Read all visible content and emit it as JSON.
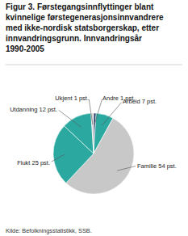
{
  "chart_data": {
    "type": "pie",
    "title": [
      "Figur 3. Førstegangsinnflyttinger blant",
      "kvinnelige førstegenerasjonsinnvandrere",
      "med ikke-nordisk statsborgerskap, etter",
      "innvandringsgrunn. Innvandringsår",
      "1990-2005"
    ],
    "categories": [
      "Andre 1 pst.",
      "Arbeid 7 pst.",
      "Familie 54 pst.",
      "Flukt 25 pst.",
      "Utdanning 12 pst.",
      "Ukjent 1 pst."
    ],
    "values": [
      1,
      7,
      54,
      25,
      12,
      1
    ],
    "colors": [
      "#1a3060",
      "#2ba8a0",
      "#c8c8c8",
      "#2ba8a0",
      "#2ba8a0",
      "#d4d4d4"
    ],
    "annotations": [
      "Kilde: Befolkningsstatistikk, SSB."
    ]
  }
}
